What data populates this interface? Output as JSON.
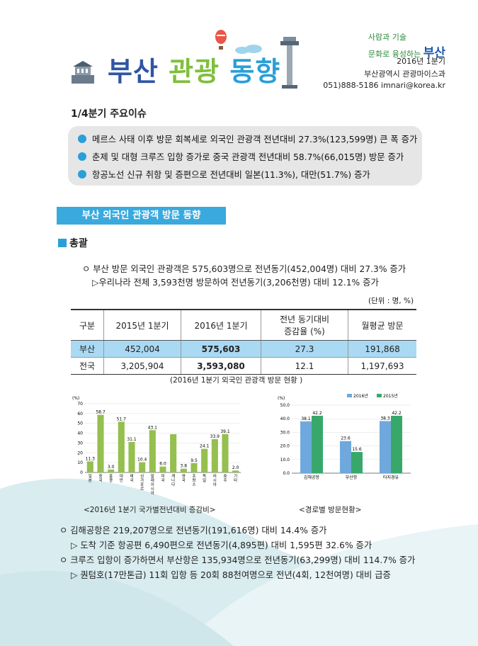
{
  "header": {
    "title_part1": "부산",
    "title_part2": "관광",
    "title_part3": "동향",
    "slogan_line1": "사람과 기술",
    "slogan_line2": "문화로 융성하는",
    "slogan_city": "부산",
    "period": "2016년 1분기",
    "department": "부산광역시 관광마이스과",
    "contact": "051)888-5186  imnari@korea.kr"
  },
  "issues": {
    "title": "1/4분기 주요이슈",
    "items": [
      "메르스 사태 이후 방문 회복세로 외국인 관광객 전년대비 27.3%(123,599명) 큰 폭 증가",
      "춘제 및 대형 크루즈 입항 증가로 중국 관광객 전년대비 58.7%(66,015명) 방문 증가",
      "항공노선 신규 취항 및 증편으로 전년대비 일본(11.3%), 대만(51.7%) 증가"
    ]
  },
  "section": {
    "banner": "부산 외국인 관광객 방문 동향",
    "subheading": "총괄",
    "line1": "ㅇ 부산 방문 외국인 관광객은 575,603명으로 전년동기(452,004명) 대비 27.3% 증가",
    "line2": "▷우리나라 전체 3,593천명 방문하여 전년동기(3,206천명) 대비 12.1% 증가",
    "unit": "(단위 : 명, %)"
  },
  "table": {
    "headers": [
      "구분",
      "2015년 1분기",
      "2016년 1분기",
      "전년 동기대비",
      "증감율 (%)",
      "월평균 방문"
    ],
    "rows": [
      [
        "부산",
        "452,004",
        "575,603",
        "27.3",
        "191,868"
      ],
      [
        "전국",
        "3,205,904",
        "3,593,080",
        "12.1",
        "1,197,693"
      ]
    ],
    "caption": "(2016년 1분기 외국인 관광객 방문 현황 )"
  },
  "chart_data": [
    {
      "type": "bar",
      "title": "",
      "ylabel": "(%)",
      "ylim": [
        0,
        70
      ],
      "yticks": [
        0,
        10,
        20,
        30,
        40,
        50,
        60,
        70
      ],
      "categories": [
        "일본",
        "중국",
        "홍콩",
        "대만",
        "태국",
        "싱가포르",
        "말레이시아",
        "미국",
        "캐나다",
        "영국",
        "프랑스",
        "독일",
        "러시아",
        "호주",
        "기타"
      ],
      "values": [
        11.3,
        58.7,
        3.0,
        51.7,
        31.1,
        10.4,
        43.1,
        6.0,
        39.0,
        3.8,
        9.5,
        24.1,
        33.9,
        39.1,
        2.0
      ],
      "data_labels": [
        "11.3",
        "58.7",
        "3.0",
        "51.7",
        "31.1",
        "10.4",
        "43.1",
        "6.0",
        "",
        "3.8",
        "9.5",
        "24.1",
        "33.9",
        "39.1",
        "2.0"
      ],
      "color": "#95bf4e",
      "caption": "<2016년 1분기 국가별전년대비 증감비>"
    },
    {
      "type": "bar",
      "title": "",
      "ylabel": "(%)",
      "ylim": [
        0,
        50
      ],
      "yticks": [
        "0.0",
        "10.0",
        "20.0",
        "30.0",
        "40.0",
        "50.0"
      ],
      "categories": [
        "김해공항",
        "부산항",
        "타지경유"
      ],
      "series": [
        {
          "name": "2016년",
          "values": [
            38.1,
            23.6,
            38.3
          ],
          "color": "#6fa8dc"
        },
        {
          "name": "2015년",
          "values": [
            42.2,
            15.6,
            42.2
          ],
          "color": "#38a86a"
        }
      ],
      "legend": "top",
      "caption": "<경로별 방문현황>"
    }
  ],
  "bottom": {
    "lines": [
      "ㅇ 김해공항은 219,207명으로 전년동기(191,616명) 대비 14.4% 증가",
      "▷ 도착 기준 항공편 6,490편으로 전년동기(4,895편) 대비 1,595편 32.6% 증가",
      "ㅇ 크루즈 입항이 증가하면서 부산항은 135,934명으로 전년동기(63,299명) 대비 114.7% 증가",
      "▷ 퀀텀호(17만톤급) 11회 입항 등 20회 88천여명으로 전년(4회, 12천여명) 대비 급증"
    ]
  },
  "colors": {
    "accent": "#2a9fd8",
    "title_blue": "#2f55a4",
    "title_green": "#7fbf3a",
    "table_highlight": "#a9d9f3"
  },
  "icons": [
    "lighthouse-icon",
    "balloon-icon",
    "cloud-icon",
    "busan-tower-icon"
  ]
}
